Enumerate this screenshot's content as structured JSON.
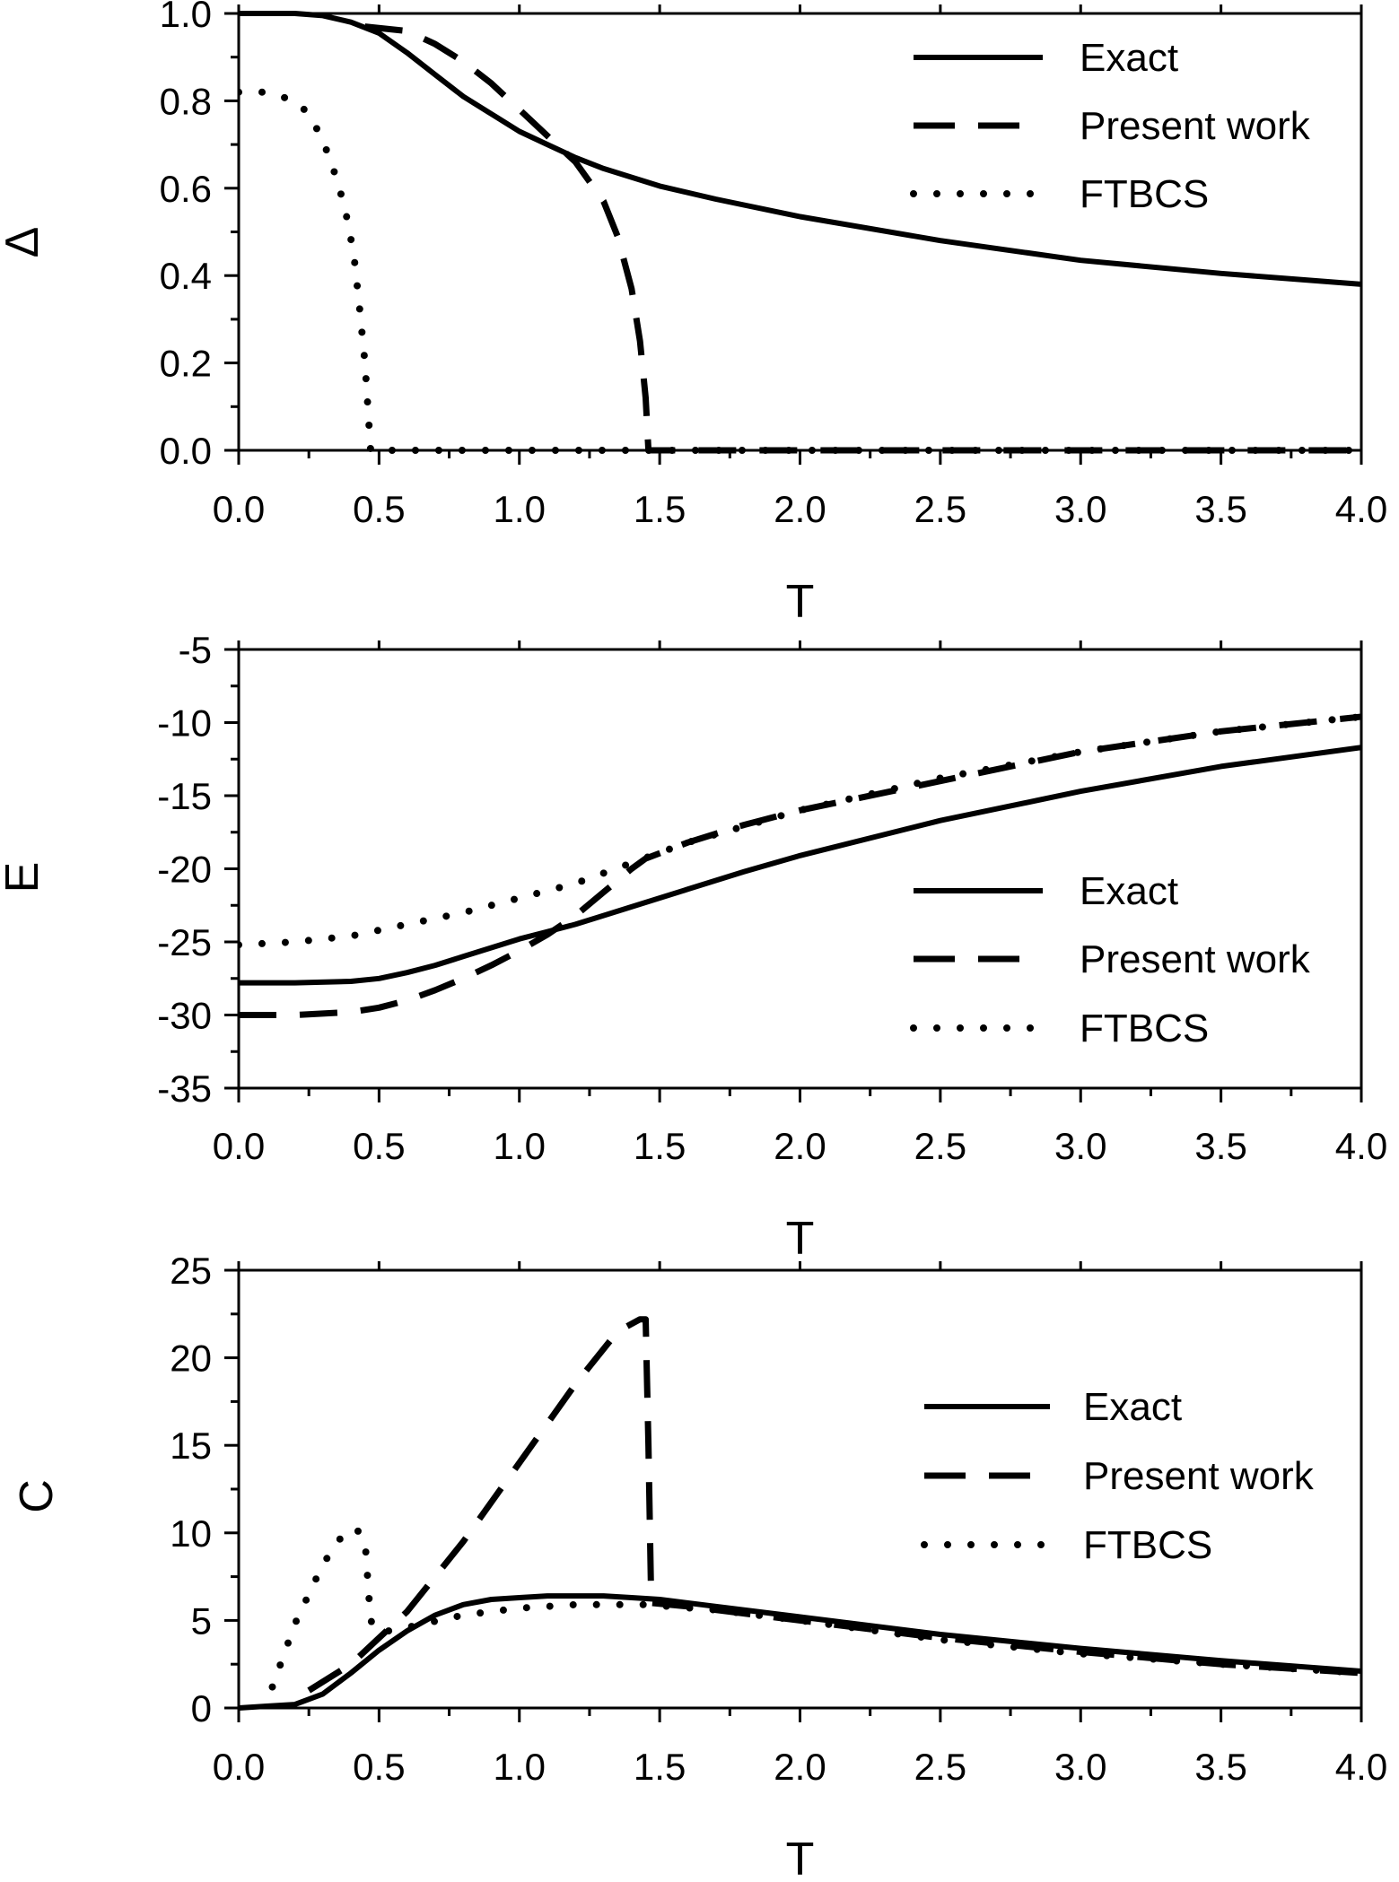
{
  "chart_data": [
    {
      "type": "line",
      "xlabel": "T",
      "ylabel": "Δ",
      "xlim": [
        0,
        4.0
      ],
      "ylim": [
        0,
        1.0
      ],
      "xticks": [
        "0.0",
        "0.5",
        "1.0",
        "1.5",
        "2.0",
        "2.5",
        "3.0",
        "3.5",
        "4.0"
      ],
      "yticks": [
        "0.0",
        "0.2",
        "0.4",
        "0.6",
        "0.8",
        "1.0"
      ],
      "legend": "top-right",
      "series": [
        {
          "name": "Exact",
          "style": "solid",
          "x": [
            0.0,
            0.2,
            0.3,
            0.4,
            0.5,
            0.6,
            0.7,
            0.8,
            0.9,
            1.0,
            1.1,
            1.2,
            1.3,
            1.4,
            1.5,
            1.7,
            2.0,
            2.5,
            3.0,
            3.5,
            4.0
          ],
          "y": [
            1.0,
            1.0,
            0.995,
            0.98,
            0.955,
            0.91,
            0.86,
            0.81,
            0.77,
            0.73,
            0.7,
            0.67,
            0.645,
            0.625,
            0.605,
            0.575,
            0.535,
            0.48,
            0.435,
            0.405,
            0.38
          ]
        },
        {
          "name": "Present work",
          "style": "dashed",
          "x": [
            0.45,
            0.6,
            0.7,
            0.8,
            0.9,
            1.0,
            1.1,
            1.2,
            1.3,
            1.35,
            1.4,
            1.43,
            1.45,
            1.46,
            1.5,
            2.0,
            3.0,
            4.0
          ],
          "y": [
            0.97,
            0.96,
            0.93,
            0.89,
            0.84,
            0.78,
            0.72,
            0.66,
            0.57,
            0.49,
            0.37,
            0.25,
            0.12,
            0.0,
            0.0,
            0.0,
            0.0,
            0.0
          ]
        },
        {
          "name": "FTBCS",
          "style": "dotted",
          "x": [
            0.0,
            0.1,
            0.2,
            0.25,
            0.3,
            0.35,
            0.38,
            0.41,
            0.43,
            0.45,
            0.46,
            0.47,
            0.5,
            1.0,
            2.0,
            3.0,
            4.0
          ],
          "y": [
            0.82,
            0.82,
            0.8,
            0.77,
            0.71,
            0.62,
            0.55,
            0.45,
            0.33,
            0.2,
            0.1,
            0.0,
            0.0,
            0.0,
            0.0,
            0.0,
            0.0
          ]
        }
      ]
    },
    {
      "type": "line",
      "xlabel": "T",
      "ylabel": "E",
      "xlim": [
        0,
        4.0
      ],
      "ylim": [
        -35,
        -5
      ],
      "xticks": [
        "0.0",
        "0.5",
        "1.0",
        "1.5",
        "2.0",
        "2.5",
        "3.0",
        "3.5",
        "4.0"
      ],
      "yticks": [
        "-35",
        "-30",
        "-25",
        "-20",
        "-15",
        "-10",
        "-5"
      ],
      "legend": "right",
      "series": [
        {
          "name": "Exact",
          "style": "solid",
          "x": [
            0.0,
            0.2,
            0.4,
            0.5,
            0.6,
            0.7,
            0.8,
            0.9,
            1.0,
            1.1,
            1.2,
            1.4,
            1.6,
            1.8,
            2.0,
            2.5,
            3.0,
            3.5,
            4.0
          ],
          "y": [
            -27.8,
            -27.8,
            -27.7,
            -27.5,
            -27.1,
            -26.6,
            -26.0,
            -25.4,
            -24.8,
            -24.3,
            -23.8,
            -22.6,
            -21.4,
            -20.2,
            -19.1,
            -16.7,
            -14.7,
            -13.0,
            -11.7
          ]
        },
        {
          "name": "Present work",
          "style": "dashed",
          "x": [
            0.0,
            0.2,
            0.4,
            0.5,
            0.6,
            0.7,
            0.8,
            0.9,
            1.0,
            1.1,
            1.2,
            1.3,
            1.4,
            1.45,
            1.6,
            1.8,
            2.0,
            2.5,
            3.0,
            3.5,
            4.0
          ],
          "y": [
            -30.0,
            -30.0,
            -29.8,
            -29.5,
            -29.0,
            -28.3,
            -27.5,
            -26.6,
            -25.6,
            -24.5,
            -23.2,
            -21.6,
            -20.0,
            -19.3,
            -18.2,
            -17.0,
            -16.0,
            -14.0,
            -12.0,
            -10.6,
            -9.6
          ]
        },
        {
          "name": "FTBCS",
          "style": "dotted",
          "x": [
            0.0,
            0.2,
            0.4,
            0.5,
            0.6,
            0.8,
            1.0,
            1.2,
            1.4,
            1.6,
            2.0,
            2.5,
            3.0,
            3.5,
            4.0
          ],
          "y": [
            -25.2,
            -25.0,
            -24.6,
            -24.2,
            -23.8,
            -23.0,
            -22.0,
            -21.0,
            -19.6,
            -18.2,
            -16.0,
            -13.8,
            -12.0,
            -10.6,
            -9.6
          ]
        }
      ]
    },
    {
      "type": "line",
      "xlabel": "T",
      "ylabel": "C",
      "xlim": [
        0,
        4.0
      ],
      "ylim": [
        0,
        25
      ],
      "xticks": [
        "0.0",
        "0.5",
        "1.0",
        "1.5",
        "2.0",
        "2.5",
        "3.0",
        "3.5",
        "4.0"
      ],
      "yticks": [
        "0",
        "5",
        "10",
        "15",
        "20",
        "25"
      ],
      "legend": "right",
      "series": [
        {
          "name": "Exact",
          "style": "solid",
          "x": [
            0.0,
            0.1,
            0.2,
            0.3,
            0.4,
            0.5,
            0.6,
            0.7,
            0.8,
            0.9,
            1.0,
            1.1,
            1.2,
            1.3,
            1.4,
            1.5,
            1.7,
            2.0,
            2.5,
            3.0,
            3.5,
            4.0
          ],
          "y": [
            0.0,
            0.1,
            0.2,
            0.8,
            2.0,
            3.3,
            4.4,
            5.3,
            5.9,
            6.2,
            6.3,
            6.4,
            6.4,
            6.4,
            6.3,
            6.2,
            5.8,
            5.2,
            4.2,
            3.4,
            2.7,
            2.1
          ]
        },
        {
          "name": "Present work",
          "style": "dashed",
          "x": [
            0.25,
            0.4,
            0.6,
            0.8,
            1.0,
            1.2,
            1.35,
            1.43,
            1.45,
            1.46,
            1.47,
            1.6,
            2.0,
            2.5,
            3.0,
            3.5,
            4.0
          ],
          "y": [
            1.0,
            2.5,
            5.5,
            9.5,
            14.0,
            18.5,
            21.5,
            22.2,
            22.2,
            15.0,
            6.0,
            5.8,
            5.0,
            4.0,
            3.2,
            2.5,
            2.0
          ]
        },
        {
          "name": "FTBCS",
          "style": "dotted",
          "x": [
            0.12,
            0.2,
            0.3,
            0.38,
            0.42,
            0.45,
            0.47,
            0.5,
            0.6,
            0.8,
            1.0,
            1.2,
            1.45,
            1.7,
            2.0,
            2.5,
            3.0,
            3.5,
            4.0
          ],
          "y": [
            1.2,
            4.8,
            8.2,
            10.1,
            10.2,
            9.6,
            5.0,
            4.3,
            4.6,
            5.3,
            5.7,
            5.9,
            5.9,
            5.6,
            5.0,
            3.9,
            3.1,
            2.5,
            2.0
          ]
        }
      ]
    }
  ]
}
